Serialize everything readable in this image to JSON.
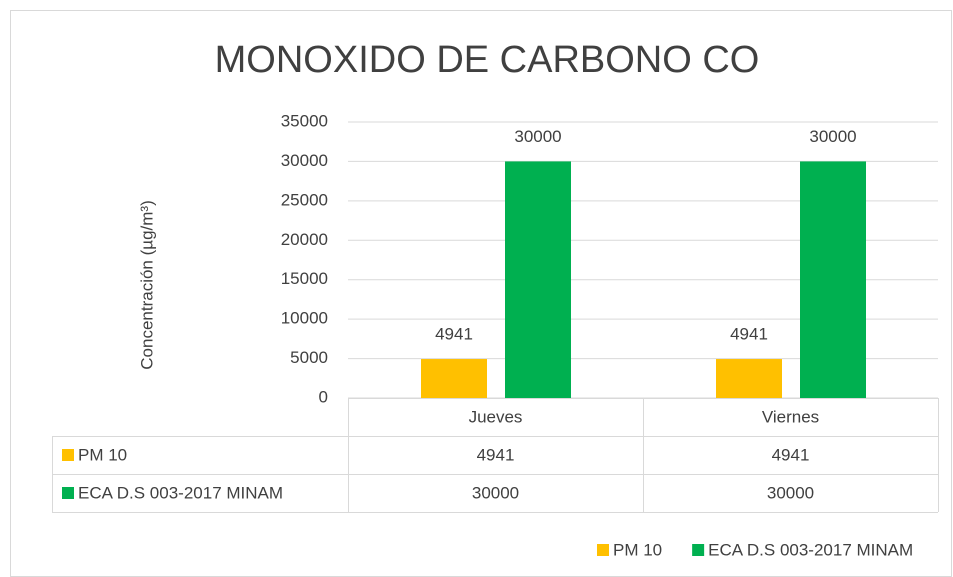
{
  "chart_data": {
    "type": "bar",
    "title": "MONOXIDO DE CARBONO CO",
    "y_label": "Concentración (µg/m³)",
    "categories": [
      "Jueves",
      "Viernes"
    ],
    "series": [
      {
        "name": "PM 10",
        "color": "#FFC000",
        "values": [
          4941,
          4941
        ]
      },
      {
        "name": "ECA D.S 003-2017 MINAM",
        "color": "#00B050",
        "values": [
          30000,
          30000
        ]
      }
    ],
    "ylim": [
      0,
      35000
    ],
    "yticks": [
      0,
      5000,
      10000,
      15000,
      20000,
      25000,
      30000,
      35000
    ],
    "grid": true,
    "legend": "bottom"
  }
}
